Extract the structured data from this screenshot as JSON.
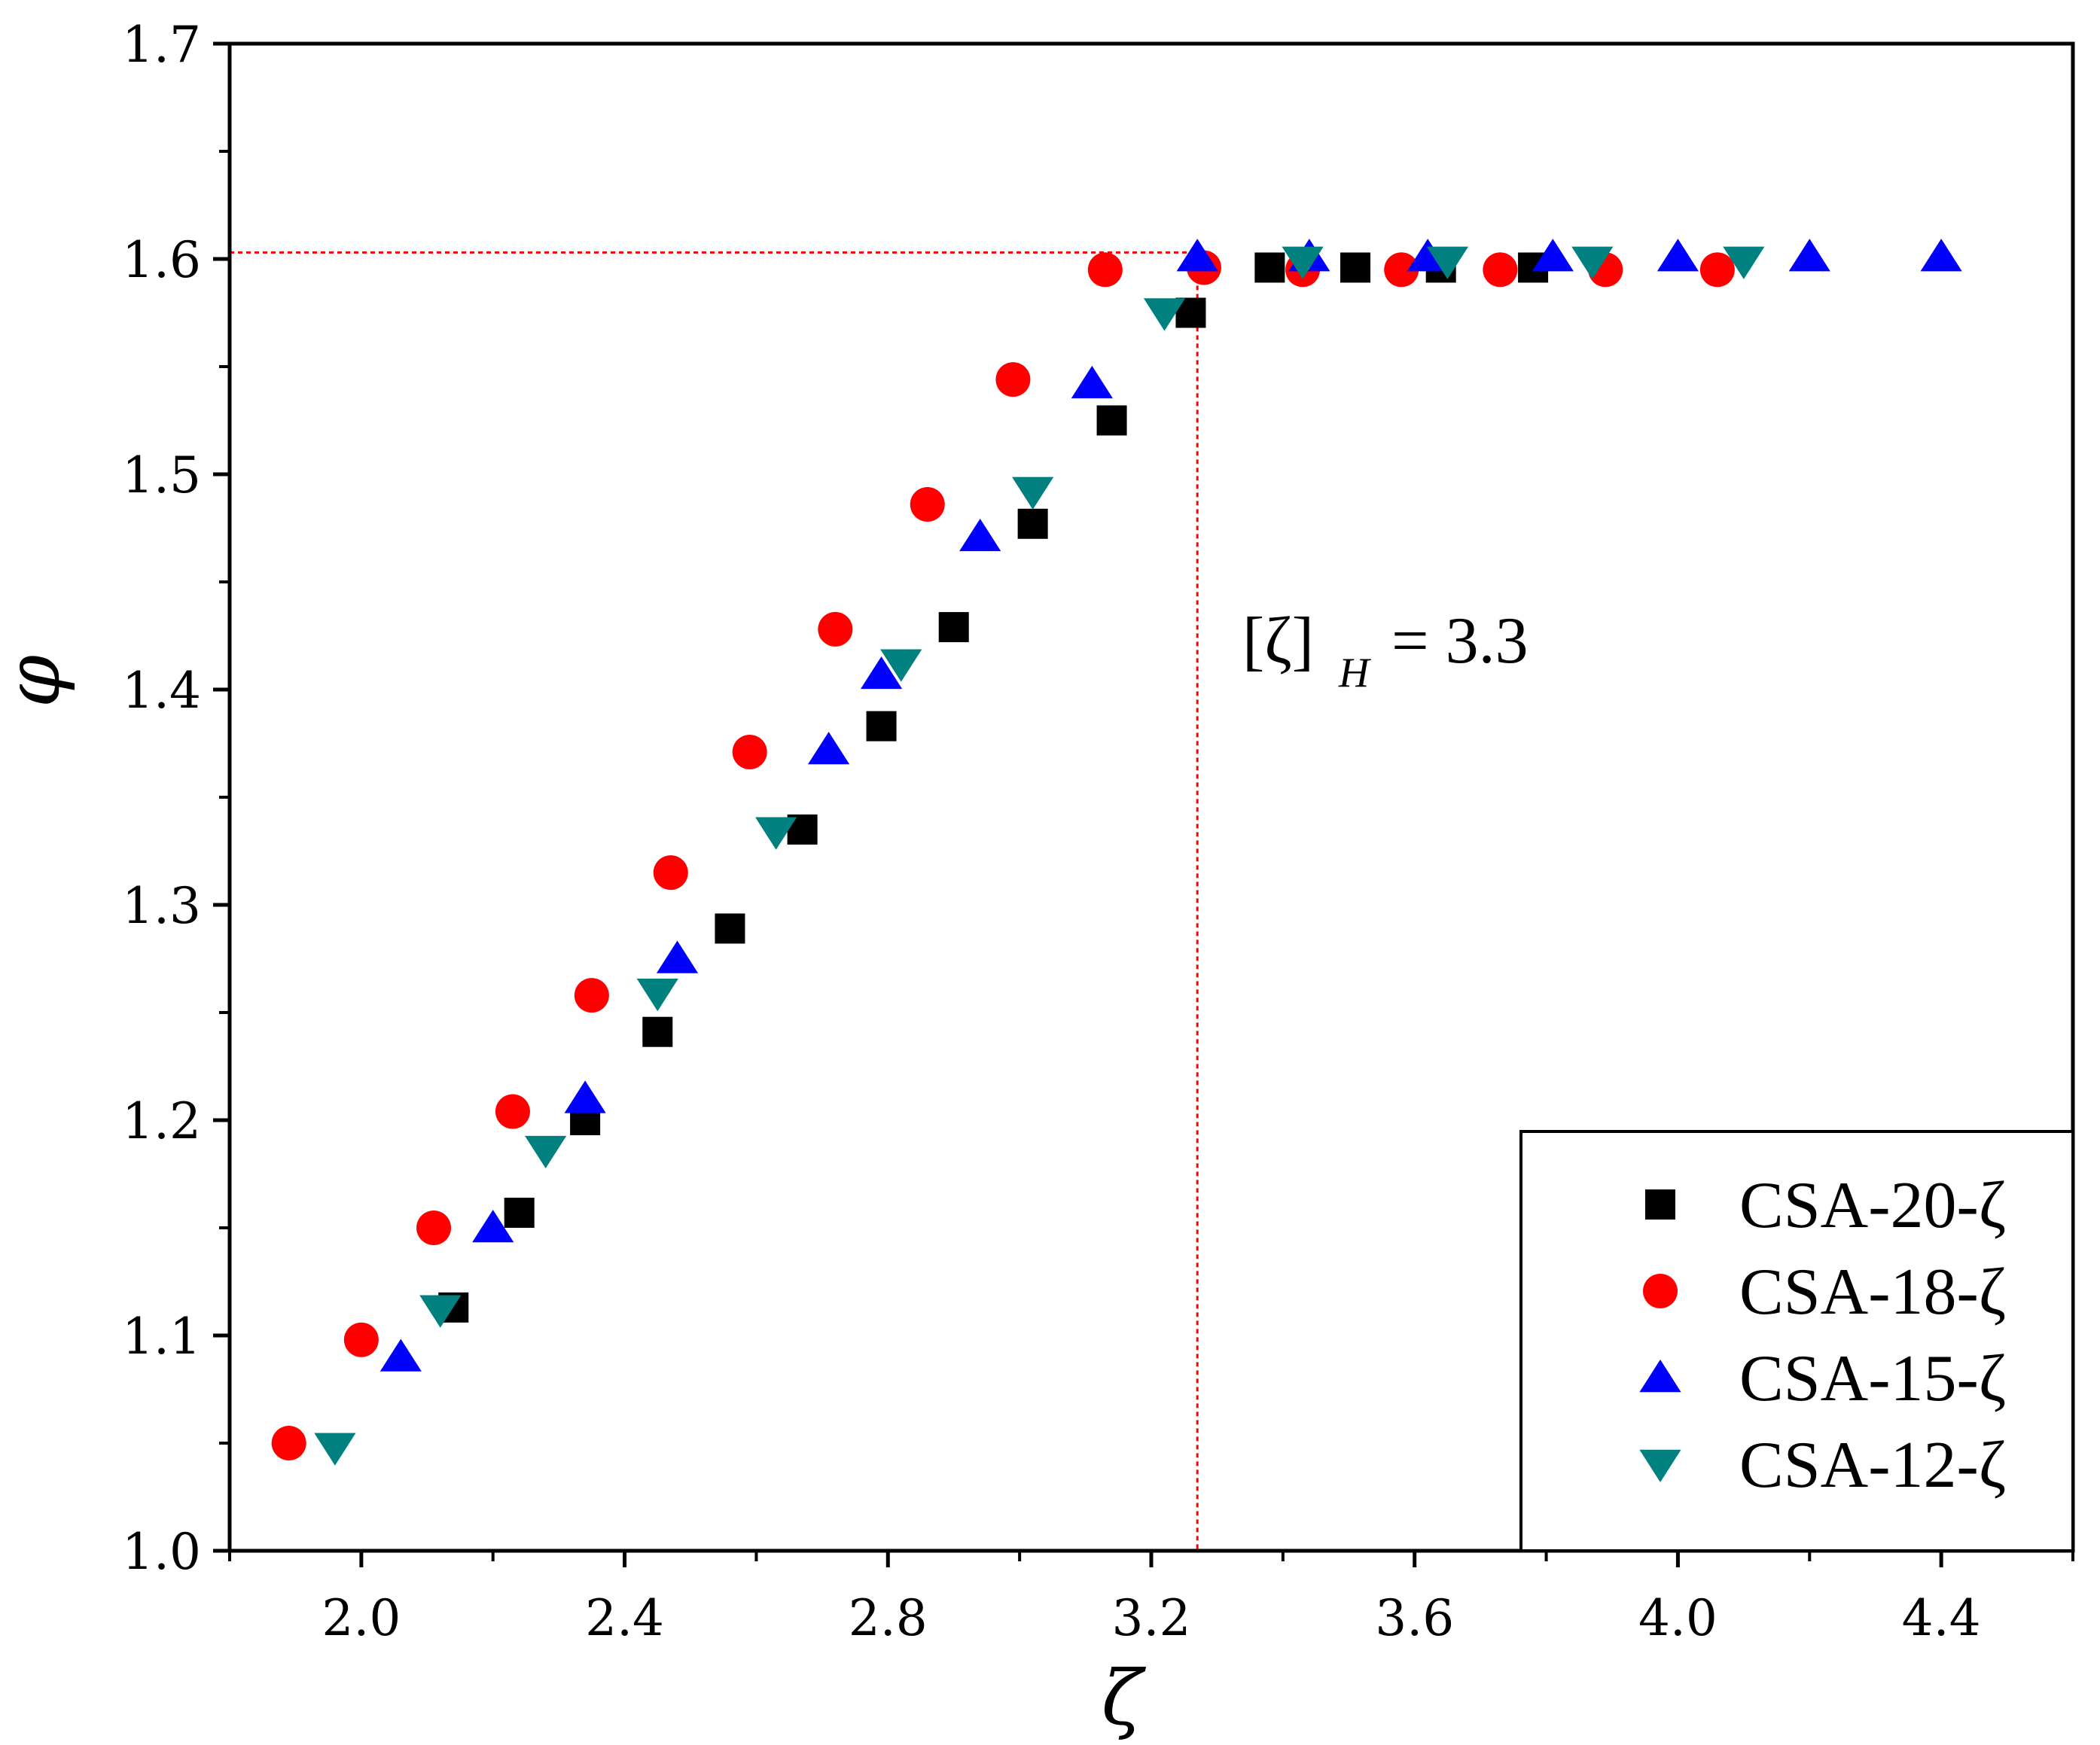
{
  "chart_data": {
    "type": "scatter",
    "title": "",
    "xlabel": "ζ",
    "ylabel": "φ",
    "xlim": [
      1.8,
      4.6
    ],
    "ylim": [
      1.0,
      1.7
    ],
    "x_ticks": [
      2.0,
      2.4,
      2.8,
      3.2,
      3.6,
      4.0,
      4.4
    ],
    "x_tick_labels": [
      "2.0",
      "2.4",
      "2.8",
      "3.2",
      "3.6",
      "4.0",
      "4.4"
    ],
    "y_ticks": [
      1.0,
      1.1,
      1.2,
      1.3,
      1.4,
      1.5,
      1.6,
      1.7
    ],
    "y_tick_labels": [
      "1.0",
      "1.1",
      "1.2",
      "1.3",
      "1.4",
      "1.5",
      "1.6",
      "1.7"
    ],
    "grid": false,
    "legend_position": "bottom-right",
    "series": [
      {
        "name": "CSA-20-ζ",
        "marker": "square",
        "color": "#000000",
        "points": [
          [
            2.14,
            1.113
          ],
          [
            2.24,
            1.157
          ],
          [
            2.34,
            1.2
          ],
          [
            2.45,
            1.241
          ],
          [
            2.56,
            1.289
          ],
          [
            2.67,
            1.335
          ],
          [
            2.79,
            1.383
          ],
          [
            2.9,
            1.429
          ],
          [
            3.02,
            1.477
          ],
          [
            3.14,
            1.525
          ],
          [
            3.26,
            1.575
          ],
          [
            3.38,
            1.596
          ],
          [
            3.51,
            1.596
          ],
          [
            3.64,
            1.596
          ],
          [
            3.78,
            1.596
          ]
        ]
      },
      {
        "name": "CSA-18-ζ",
        "marker": "circle",
        "color": "#ff0000",
        "points": [
          [
            1.89,
            1.05
          ],
          [
            2.0,
            1.098
          ],
          [
            2.11,
            1.15
          ],
          [
            2.23,
            1.204
          ],
          [
            2.35,
            1.258
          ],
          [
            2.47,
            1.315
          ],
          [
            2.59,
            1.371
          ],
          [
            2.72,
            1.428
          ],
          [
            2.86,
            1.486
          ],
          [
            2.99,
            1.544
          ],
          [
            3.13,
            1.595
          ],
          [
            3.28,
            1.596
          ],
          [
            3.43,
            1.595
          ],
          [
            3.58,
            1.595
          ],
          [
            3.73,
            1.595
          ],
          [
            3.89,
            1.595
          ],
          [
            4.06,
            1.595
          ]
        ]
      },
      {
        "name": "CSA-15-ζ",
        "marker": "triangle-up",
        "color": "#0000ff",
        "points": [
          [
            2.06,
            1.09
          ],
          [
            2.2,
            1.15
          ],
          [
            2.34,
            1.21
          ],
          [
            2.48,
            1.275
          ],
          [
            2.71,
            1.372
          ],
          [
            2.79,
            1.407
          ],
          [
            2.94,
            1.471
          ],
          [
            3.11,
            1.542
          ],
          [
            3.27,
            1.601
          ],
          [
            3.44,
            1.601
          ],
          [
            3.62,
            1.601
          ],
          [
            3.81,
            1.601
          ],
          [
            4.0,
            1.601
          ],
          [
            4.2,
            1.601
          ],
          [
            4.4,
            1.601
          ]
        ]
      },
      {
        "name": "CSA-12-ζ",
        "marker": "triangle-down",
        "color": "#00807f",
        "points": [
          [
            1.96,
            1.048
          ],
          [
            2.12,
            1.112
          ],
          [
            2.28,
            1.186
          ],
          [
            2.45,
            1.259
          ],
          [
            2.63,
            1.334
          ],
          [
            2.82,
            1.412
          ],
          [
            3.02,
            1.492
          ],
          [
            3.22,
            1.575
          ],
          [
            3.43,
            1.599
          ],
          [
            3.65,
            1.599
          ],
          [
            3.87,
            1.599
          ],
          [
            4.1,
            1.599
          ]
        ]
      }
    ],
    "annotations": [
      {
        "type": "reference-lines",
        "x": 3.27,
        "y": 1.603,
        "color": "#ff0000",
        "style": "dotted"
      },
      {
        "type": "text",
        "base": "[ζ]",
        "subscript": "H",
        "equation": "= 3.3"
      }
    ]
  }
}
